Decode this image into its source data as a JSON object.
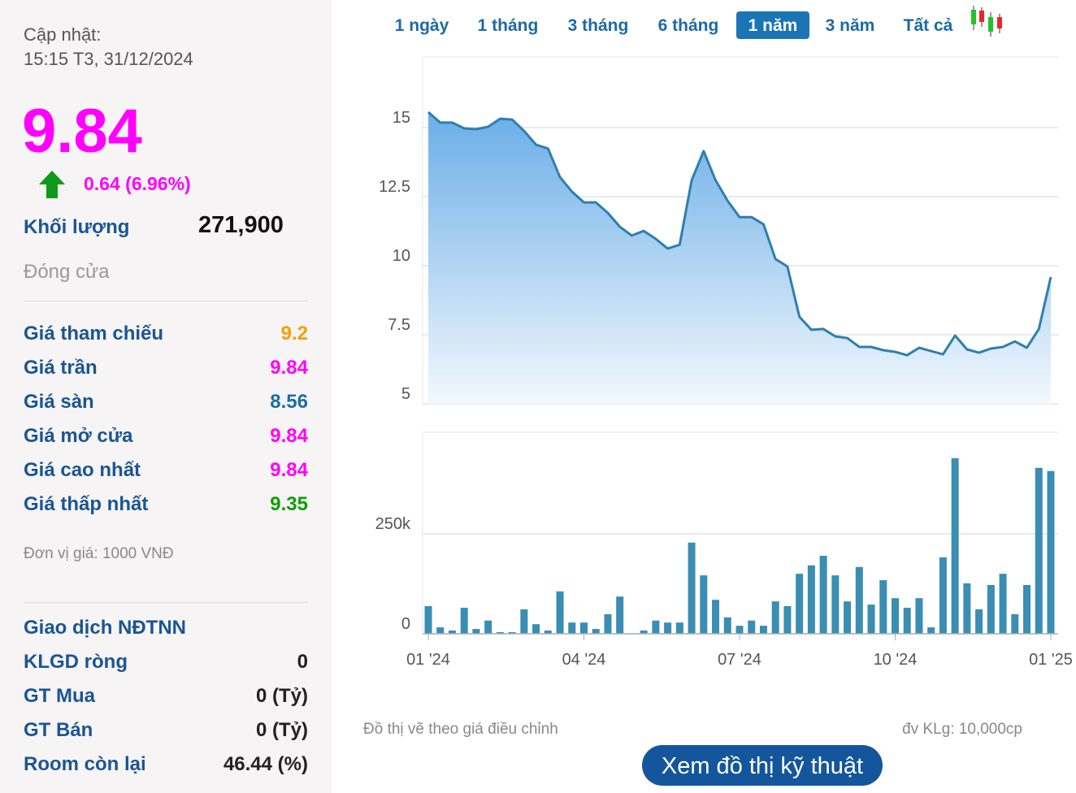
{
  "panel": {
    "updated_label": "Cập nhật:",
    "updated_time": "15:15 T3, 31/12/2024",
    "price": "9.84",
    "change": "0.64 (6.96%)",
    "volume_label": "Khối lượng",
    "volume": "271,900",
    "status": "Đóng cửa",
    "rows": [
      {
        "label": "Giá tham chiếu",
        "value": "9.2",
        "color": "#f5a000"
      },
      {
        "label": "Giá trần",
        "value": "9.84",
        "color": "#ff00ff"
      },
      {
        "label": "Giá sàn",
        "value": "8.56",
        "color": "#1a6fa3"
      },
      {
        "label": "Giá mở cửa",
        "value": "9.84",
        "color": "#ff00ff"
      },
      {
        "label": "Giá cao nhất",
        "value": "9.84",
        "color": "#ff00ff"
      },
      {
        "label": "Giá thấp nhất",
        "value": "9.35",
        "color": "#0aa000"
      }
    ],
    "unit_note": "Đơn vị giá: 1000 VNĐ",
    "foreign_title": "Giao dịch NĐTNN",
    "foreign_rows": [
      {
        "label": "KLGD ròng",
        "value": "0"
      },
      {
        "label": "GT Mua",
        "value": "0 (Tỷ)"
      },
      {
        "label": "GT Bán",
        "value": "0 (Tỷ)"
      },
      {
        "label": "Room còn lại",
        "value": "46.44 (%)"
      }
    ]
  },
  "tabs": [
    {
      "label": "1 ngày",
      "active": false
    },
    {
      "label": "1 tháng",
      "active": false
    },
    {
      "label": "3 tháng",
      "active": false
    },
    {
      "label": "6 tháng",
      "active": false
    },
    {
      "label": "1 năm",
      "active": true
    },
    {
      "label": "3 năm",
      "active": false
    },
    {
      "label": "Tất cả",
      "active": false
    }
  ],
  "chart_data": [
    {
      "type": "area",
      "color": "#2f7fae",
      "values": [
        15.56,
        15.18,
        15.18,
        14.97,
        14.94,
        15.03,
        15.32,
        15.29,
        14.88,
        14.38,
        14.24,
        13.21,
        12.68,
        12.29,
        12.29,
        11.91,
        11.41,
        11.09,
        11.26,
        10.97,
        10.62,
        10.76,
        13.09,
        14.15,
        13.09,
        12.35,
        11.76,
        11.76,
        11.5,
        10.24,
        9.97,
        8.15,
        7.68,
        7.71,
        7.44,
        7.38,
        7.06,
        7.06,
        6.94,
        6.88,
        6.76,
        7.03,
        6.91,
        6.79,
        7.47,
        6.97,
        6.85,
        7.0,
        7.06,
        7.26,
        7.03,
        7.71,
        9.59
      ],
      "ylim": [
        5,
        17.5
      ],
      "yticks": [
        5,
        7.5,
        10,
        12.5,
        15
      ],
      "grid": true
    },
    {
      "type": "bar",
      "color": "#3a8db3",
      "categories": [
        "01 '24",
        null,
        null,
        null,
        null,
        null,
        null,
        null,
        null,
        null,
        null,
        null,
        null,
        "04 '24",
        null,
        null,
        null,
        null,
        null,
        null,
        null,
        null,
        null,
        null,
        null,
        null,
        "07 '24",
        null,
        null,
        null,
        null,
        null,
        null,
        null,
        null,
        null,
        null,
        null,
        null,
        "10 '24",
        null,
        null,
        null,
        null,
        null,
        null,
        null,
        null,
        null,
        null,
        null,
        null,
        "01 '25"
      ],
      "values": [
        69000,
        16000,
        8000,
        65000,
        12000,
        33000,
        4000,
        4000,
        61000,
        24000,
        8000,
        106000,
        28000,
        28000,
        12000,
        49000,
        93000,
        0,
        8000,
        33000,
        28000,
        28000,
        228000,
        146000,
        85000,
        41000,
        20000,
        33000,
        20000,
        81000,
        69000,
        150000,
        171000,
        195000,
        146000,
        81000,
        167000,
        73000,
        134000,
        89000,
        65000,
        89000,
        16000,
        191000,
        439000,
        126000,
        61000,
        122000,
        150000,
        49000,
        122000,
        415000,
        407000
      ],
      "ylim": [
        0,
        504000
      ],
      "yticks": [
        0,
        {
          "value": 250000,
          "label": "250k"
        }
      ],
      "grid": true
    }
  ],
  "footer": {
    "note": "Đồ thị vẽ theo giá điều chỉnh",
    "unit": "đv KLg: 10,000cp",
    "button": "Xem đồ thị kỹ thuật"
  }
}
